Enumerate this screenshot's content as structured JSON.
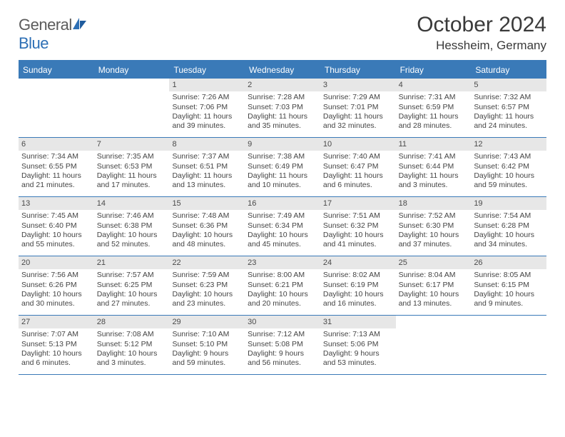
{
  "brand": {
    "part1": "General",
    "part2": "Blue"
  },
  "title": "October 2024",
  "location": "Hessheim, Germany",
  "colors": {
    "accent": "#3a7ab8",
    "dayStripe": "#e7e7e7",
    "text": "#3a3a3a",
    "bg": "#ffffff"
  },
  "weekdays": [
    "Sunday",
    "Monday",
    "Tuesday",
    "Wednesday",
    "Thursday",
    "Friday",
    "Saturday"
  ],
  "startOffset": 2,
  "days": [
    {
      "n": 1,
      "sr": "7:26 AM",
      "ss": "7:06 PM",
      "dl": "11 hours and 39 minutes."
    },
    {
      "n": 2,
      "sr": "7:28 AM",
      "ss": "7:03 PM",
      "dl": "11 hours and 35 minutes."
    },
    {
      "n": 3,
      "sr": "7:29 AM",
      "ss": "7:01 PM",
      "dl": "11 hours and 32 minutes."
    },
    {
      "n": 4,
      "sr": "7:31 AM",
      "ss": "6:59 PM",
      "dl": "11 hours and 28 minutes."
    },
    {
      "n": 5,
      "sr": "7:32 AM",
      "ss": "6:57 PM",
      "dl": "11 hours and 24 minutes."
    },
    {
      "n": 6,
      "sr": "7:34 AM",
      "ss": "6:55 PM",
      "dl": "11 hours and 21 minutes."
    },
    {
      "n": 7,
      "sr": "7:35 AM",
      "ss": "6:53 PM",
      "dl": "11 hours and 17 minutes."
    },
    {
      "n": 8,
      "sr": "7:37 AM",
      "ss": "6:51 PM",
      "dl": "11 hours and 13 minutes."
    },
    {
      "n": 9,
      "sr": "7:38 AM",
      "ss": "6:49 PM",
      "dl": "11 hours and 10 minutes."
    },
    {
      "n": 10,
      "sr": "7:40 AM",
      "ss": "6:47 PM",
      "dl": "11 hours and 6 minutes."
    },
    {
      "n": 11,
      "sr": "7:41 AM",
      "ss": "6:44 PM",
      "dl": "11 hours and 3 minutes."
    },
    {
      "n": 12,
      "sr": "7:43 AM",
      "ss": "6:42 PM",
      "dl": "10 hours and 59 minutes."
    },
    {
      "n": 13,
      "sr": "7:45 AM",
      "ss": "6:40 PM",
      "dl": "10 hours and 55 minutes."
    },
    {
      "n": 14,
      "sr": "7:46 AM",
      "ss": "6:38 PM",
      "dl": "10 hours and 52 minutes."
    },
    {
      "n": 15,
      "sr": "7:48 AM",
      "ss": "6:36 PM",
      "dl": "10 hours and 48 minutes."
    },
    {
      "n": 16,
      "sr": "7:49 AM",
      "ss": "6:34 PM",
      "dl": "10 hours and 45 minutes."
    },
    {
      "n": 17,
      "sr": "7:51 AM",
      "ss": "6:32 PM",
      "dl": "10 hours and 41 minutes."
    },
    {
      "n": 18,
      "sr": "7:52 AM",
      "ss": "6:30 PM",
      "dl": "10 hours and 37 minutes."
    },
    {
      "n": 19,
      "sr": "7:54 AM",
      "ss": "6:28 PM",
      "dl": "10 hours and 34 minutes."
    },
    {
      "n": 20,
      "sr": "7:56 AM",
      "ss": "6:26 PM",
      "dl": "10 hours and 30 minutes."
    },
    {
      "n": 21,
      "sr": "7:57 AM",
      "ss": "6:25 PM",
      "dl": "10 hours and 27 minutes."
    },
    {
      "n": 22,
      "sr": "7:59 AM",
      "ss": "6:23 PM",
      "dl": "10 hours and 23 minutes."
    },
    {
      "n": 23,
      "sr": "8:00 AM",
      "ss": "6:21 PM",
      "dl": "10 hours and 20 minutes."
    },
    {
      "n": 24,
      "sr": "8:02 AM",
      "ss": "6:19 PM",
      "dl": "10 hours and 16 minutes."
    },
    {
      "n": 25,
      "sr": "8:04 AM",
      "ss": "6:17 PM",
      "dl": "10 hours and 13 minutes."
    },
    {
      "n": 26,
      "sr": "8:05 AM",
      "ss": "6:15 PM",
      "dl": "10 hours and 9 minutes."
    },
    {
      "n": 27,
      "sr": "7:07 AM",
      "ss": "5:13 PM",
      "dl": "10 hours and 6 minutes."
    },
    {
      "n": 28,
      "sr": "7:08 AM",
      "ss": "5:12 PM",
      "dl": "10 hours and 3 minutes."
    },
    {
      "n": 29,
      "sr": "7:10 AM",
      "ss": "5:10 PM",
      "dl": "9 hours and 59 minutes."
    },
    {
      "n": 30,
      "sr": "7:12 AM",
      "ss": "5:08 PM",
      "dl": "9 hours and 56 minutes."
    },
    {
      "n": 31,
      "sr": "7:13 AM",
      "ss": "5:06 PM",
      "dl": "9 hours and 53 minutes."
    }
  ],
  "labels": {
    "sunrise": "Sunrise: ",
    "sunset": "Sunset: ",
    "daylight": "Daylight: "
  }
}
